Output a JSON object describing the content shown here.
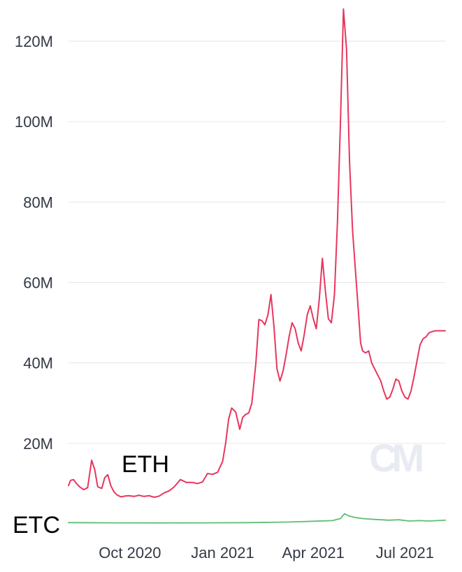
{
  "chart_data": {
    "type": "line",
    "title": "",
    "xlabel": "",
    "ylabel": "",
    "ylim": [
      0,
      130000000
    ],
    "y_ticks": [
      {
        "value": 20000000,
        "label": "20M"
      },
      {
        "value": 40000000,
        "label": "40M"
      },
      {
        "value": 60000000,
        "label": "60M"
      },
      {
        "value": 80000000,
        "label": "80M"
      },
      {
        "value": 100000000,
        "label": "100M"
      },
      {
        "value": 120000000,
        "label": "120M"
      }
    ],
    "x_ticks": [
      {
        "value": "2020-10-01",
        "label": "Oct 2020"
      },
      {
        "value": "2021-01-01",
        "label": "Jan 2021"
      },
      {
        "value": "2021-04-01",
        "label": "Apr 2021"
      },
      {
        "value": "2021-07-01",
        "label": "Jul 2021"
      }
    ],
    "xlim": [
      "2020-08-01",
      "2021-08-10"
    ],
    "grid": true,
    "watermark": "CM",
    "series": [
      {
        "name": "ETH",
        "color": "#e8365d",
        "x": [
          "2020-08-01",
          "2020-08-03",
          "2020-08-06",
          "2020-08-09",
          "2020-08-12",
          "2020-08-16",
          "2020-08-20",
          "2020-08-24",
          "2020-08-27",
          "2020-08-30",
          "2020-09-03",
          "2020-09-06",
          "2020-09-09",
          "2020-09-12",
          "2020-09-15",
          "2020-09-18",
          "2020-09-22",
          "2020-09-26",
          "2020-09-30",
          "2020-10-05",
          "2020-10-10",
          "2020-10-15",
          "2020-10-20",
          "2020-10-25",
          "2020-10-30",
          "2020-11-04",
          "2020-11-09",
          "2020-11-14",
          "2020-11-20",
          "2020-11-26",
          "2020-12-02",
          "2020-12-07",
          "2020-12-12",
          "2020-12-17",
          "2020-12-22",
          "2020-12-27",
          "2021-01-01",
          "2021-01-04",
          "2021-01-07",
          "2021-01-10",
          "2021-01-14",
          "2021-01-18",
          "2021-01-21",
          "2021-01-24",
          "2021-01-27",
          "2021-01-30",
          "2021-02-03",
          "2021-02-06",
          "2021-02-09",
          "2021-02-12",
          "2021-02-15",
          "2021-02-18",
          "2021-02-21",
          "2021-02-24",
          "2021-02-27",
          "2021-03-02",
          "2021-03-05",
          "2021-03-08",
          "2021-03-11",
          "2021-03-14",
          "2021-03-17",
          "2021-03-20",
          "2021-03-23",
          "2021-03-26",
          "2021-03-29",
          "2021-04-01",
          "2021-04-04",
          "2021-04-07",
          "2021-04-10",
          "2021-04-13",
          "2021-04-16",
          "2021-04-19",
          "2021-04-22",
          "2021-04-25",
          "2021-04-28",
          "2021-05-01",
          "2021-05-04",
          "2021-05-07",
          "2021-05-10",
          "2021-05-12",
          "2021-05-14",
          "2021-05-16",
          "2021-05-18",
          "2021-05-20",
          "2021-05-23",
          "2021-05-26",
          "2021-05-29",
          "2021-06-01",
          "2021-06-04",
          "2021-06-07",
          "2021-06-10",
          "2021-06-13",
          "2021-06-16",
          "2021-06-19",
          "2021-06-22",
          "2021-06-25",
          "2021-06-28",
          "2021-07-01",
          "2021-07-04",
          "2021-07-07",
          "2021-07-10",
          "2021-07-13",
          "2021-07-16",
          "2021-07-19",
          "2021-07-22",
          "2021-07-25",
          "2021-07-28",
          "2021-07-31",
          "2021-08-03",
          "2021-08-06",
          "2021-08-10"
        ],
        "values": [
          9500000,
          10800000,
          11000000,
          10000000,
          9200000,
          8500000,
          9000000,
          15800000,
          13500000,
          9200000,
          8800000,
          11500000,
          12200000,
          9500000,
          8000000,
          7200000,
          6700000,
          6900000,
          7000000,
          6800000,
          7100000,
          6800000,
          7000000,
          6600000,
          6900000,
          7700000,
          8200000,
          9200000,
          11000000,
          10300000,
          10300000,
          10000000,
          10400000,
          12500000,
          12300000,
          12800000,
          15500000,
          20000000,
          26000000,
          28800000,
          27800000,
          23500000,
          26500000,
          27200000,
          27600000,
          30000000,
          40000000,
          50800000,
          50500000,
          49500000,
          52000000,
          57000000,
          49000000,
          38500000,
          35500000,
          38000000,
          42000000,
          46500000,
          50000000,
          48500000,
          45000000,
          43000000,
          47000000,
          52000000,
          54200000,
          51000000,
          48500000,
          56000000,
          66000000,
          58000000,
          51000000,
          50000000,
          57000000,
          75000000,
          100000000,
          128000000,
          118000000,
          90000000,
          73000000,
          66000000,
          59000000,
          52000000,
          45000000,
          43000000,
          42500000,
          43000000,
          40000000,
          38500000,
          37000000,
          35500000,
          33000000,
          31000000,
          31500000,
          33500000,
          36000000,
          35500000,
          33000000,
          31500000,
          31000000,
          33000000,
          36500000,
          40500000,
          44500000,
          46000000,
          46500000,
          47500000,
          47800000,
          48000000,
          48000000,
          48000000,
          48000000
        ]
      },
      {
        "name": "ETC",
        "color": "#5fbd74",
        "x": [
          "2020-08-01",
          "2020-09-15",
          "2020-11-01",
          "2020-12-15",
          "2021-01-30",
          "2021-03-10",
          "2021-04-01",
          "2021-04-20",
          "2021-04-28",
          "2021-05-02",
          "2021-05-06",
          "2021-05-12",
          "2021-05-20",
          "2021-06-01",
          "2021-06-15",
          "2021-06-25",
          "2021-07-05",
          "2021-07-15",
          "2021-07-25",
          "2021-08-10"
        ],
        "values": [
          300000,
          250000,
          220000,
          250000,
          300000,
          450000,
          650000,
          800000,
          1300000,
          2500000,
          2000000,
          1600000,
          1300000,
          1100000,
          900000,
          1000000,
          700000,
          800000,
          700000,
          900000
        ]
      }
    ]
  }
}
